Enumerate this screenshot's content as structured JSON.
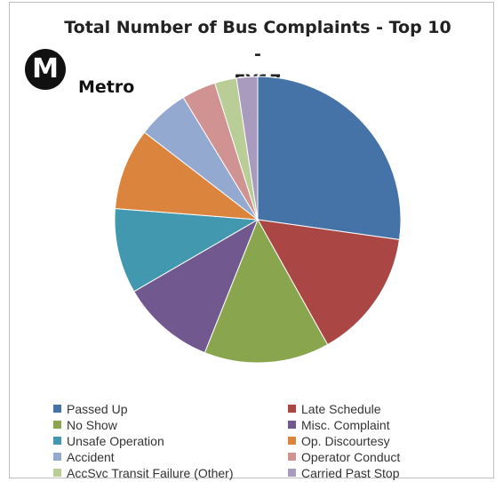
{
  "chart_data": {
    "type": "pie",
    "title": "Total Number of Bus Complaints - Top 10 - FY17",
    "title_lines": [
      "Total Number of Bus Complaints - Top 10 -",
      "FY17"
    ],
    "legend_position": "bottom",
    "slices": [
      {
        "name": "Passed Up",
        "value": 27.5,
        "color": "#4572A7"
      },
      {
        "name": "Late Schedule",
        "value": 14.8,
        "color": "#AA4643"
      },
      {
        "name": "No Show",
        "value": 14.3,
        "color": "#89A54E"
      },
      {
        "name": "Misc. Complaint",
        "value": 10.7,
        "color": "#71588F"
      },
      {
        "name": "Unsafe Operation",
        "value": 9.7,
        "color": "#4198AF"
      },
      {
        "name": "Op. Discourtesy",
        "value": 9.3,
        "color": "#DB843D"
      },
      {
        "name": "Accident",
        "value": 5.9,
        "color": "#93A9CF"
      },
      {
        "name": "Operator Conduct",
        "value": 3.9,
        "color": "#D19392"
      },
      {
        "name": "AccSvc Transit Failure (Other)",
        "value": 2.5,
        "color": "#B9CD96"
      },
      {
        "name": "Carried Past Stop",
        "value": 2.4,
        "color": "#A99BBD"
      }
    ]
  },
  "logo": {
    "symbol": "M",
    "text": "Metro"
  }
}
